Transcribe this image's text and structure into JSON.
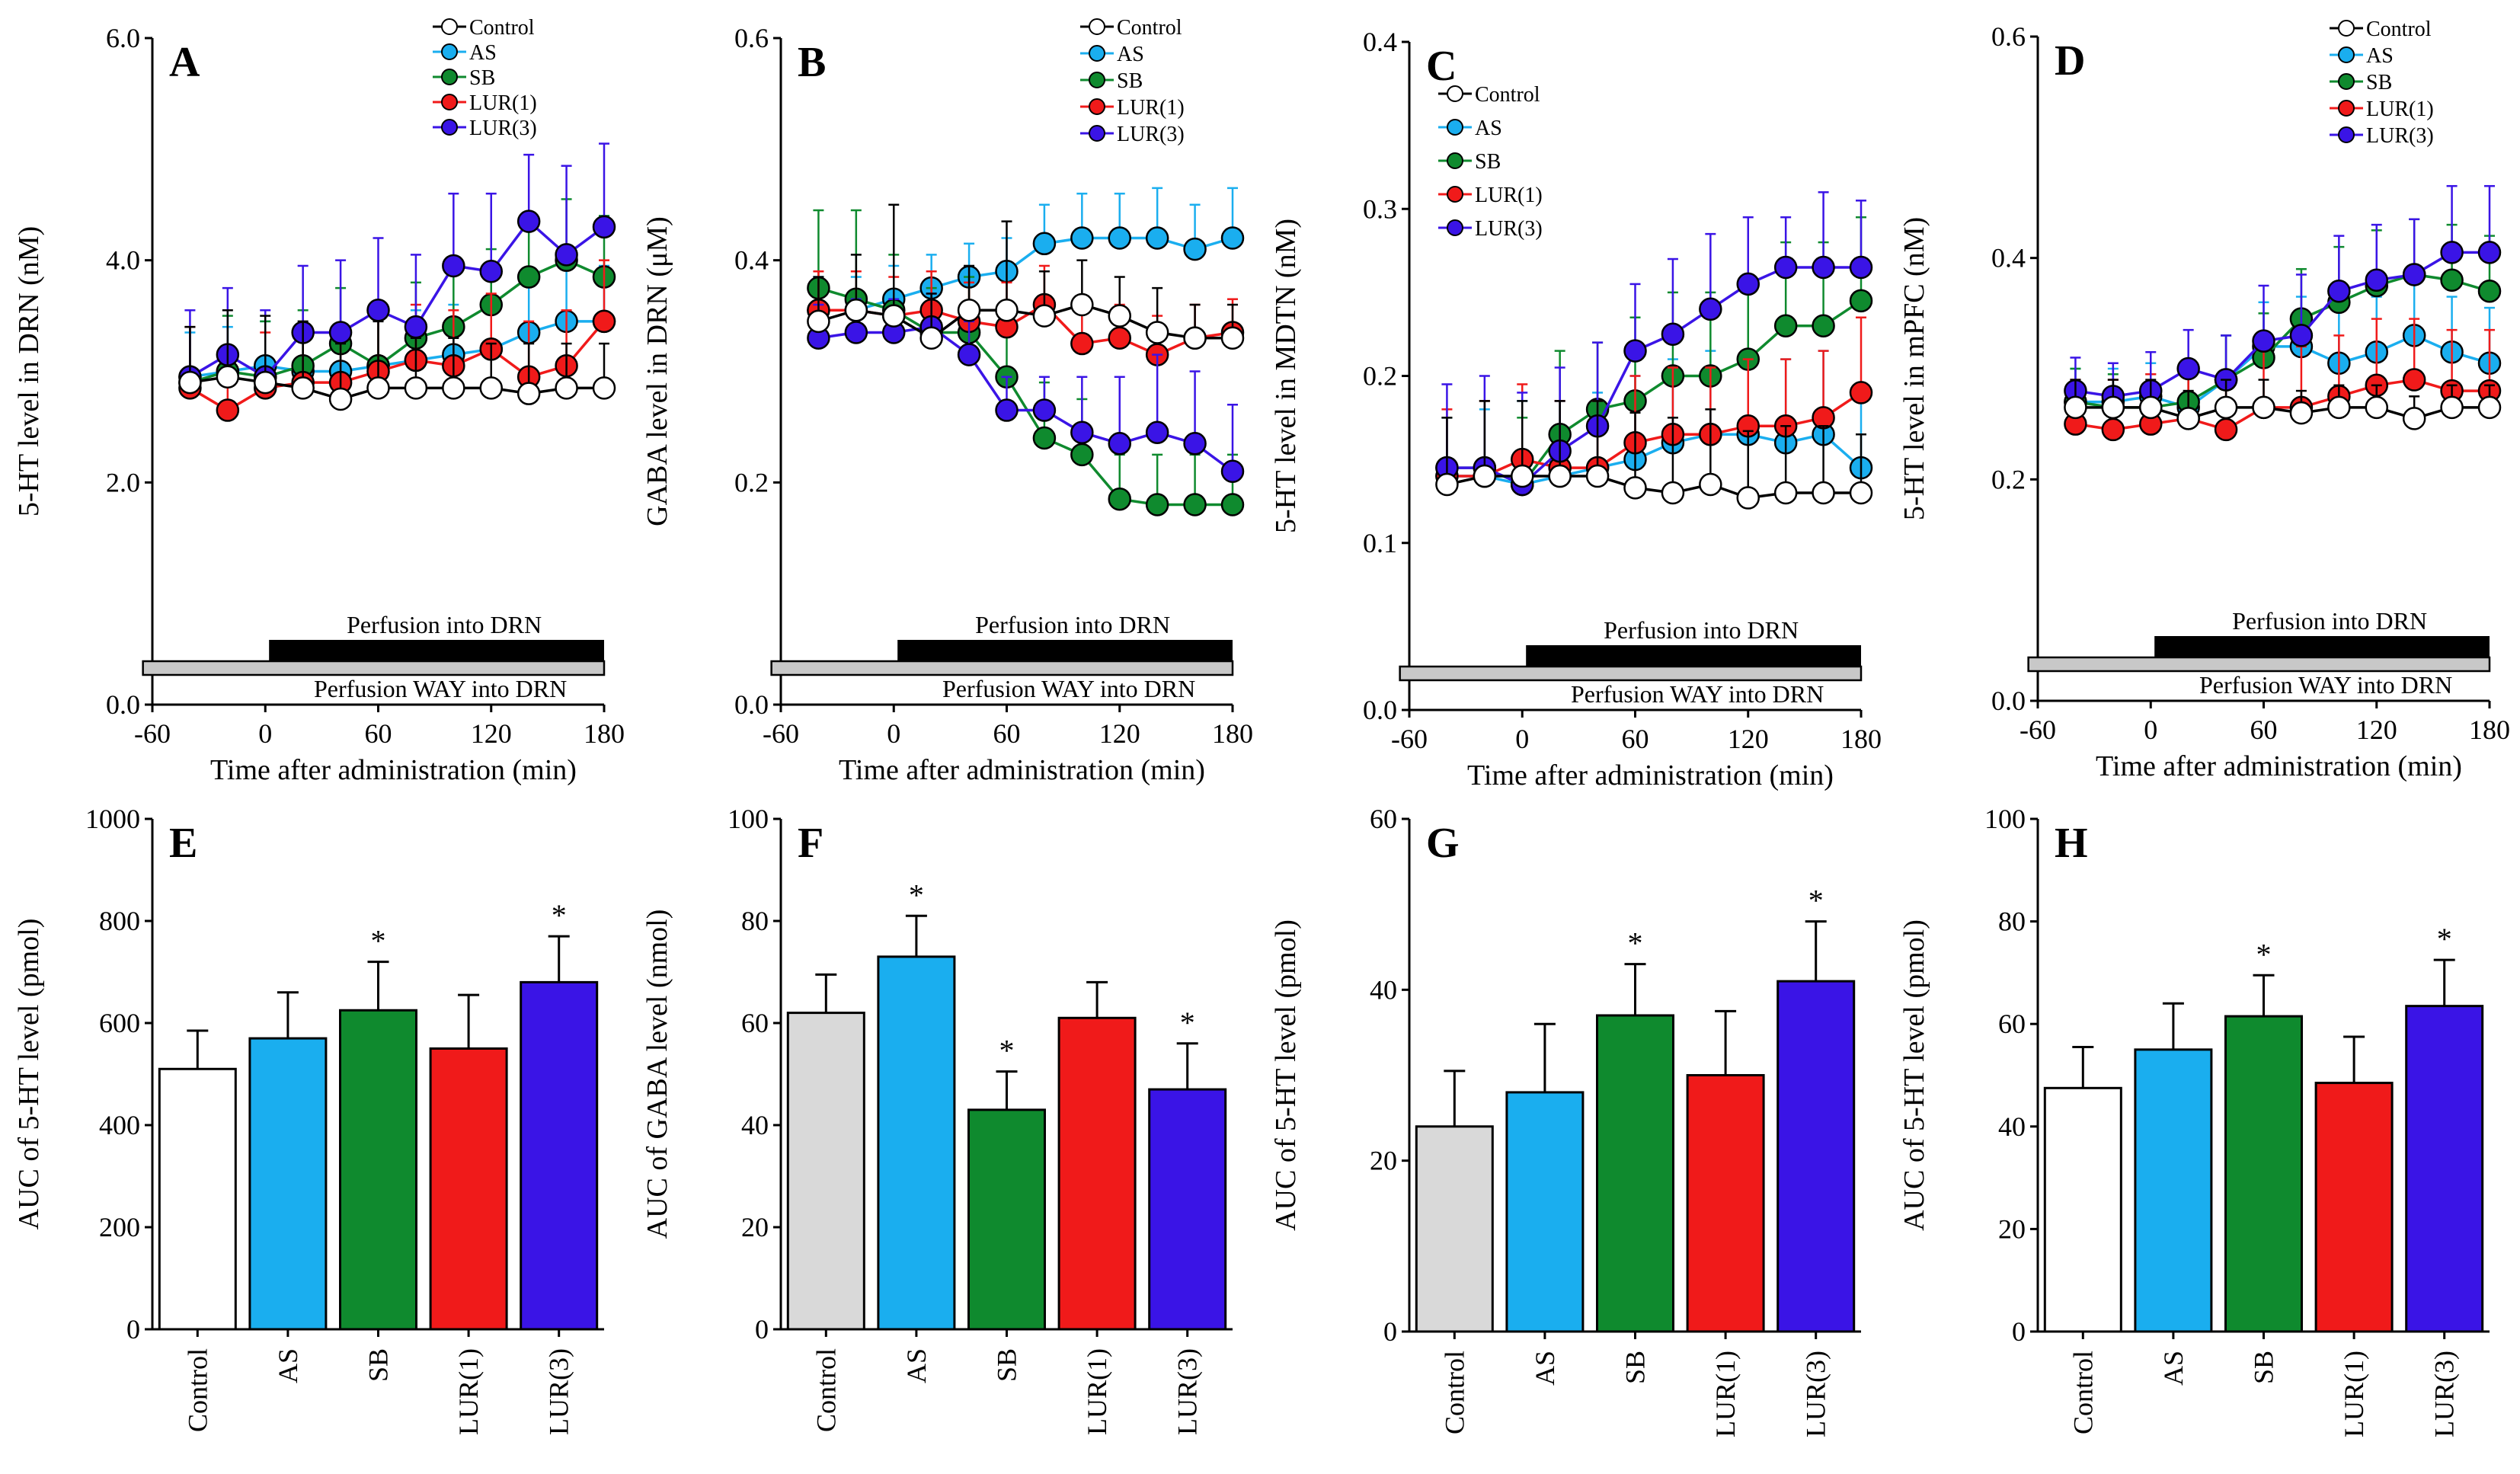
{
  "colors": {
    "Control": "#ffffff",
    "AS": "#1aaeef",
    "SB": "#0f8a2e",
    "LUR(1)": "#f01a1a",
    "LUR(3)": "#3a14e6",
    "Control_bar": "#d9d9d9"
  },
  "chart_data": [
    {
      "panel": "A",
      "type": "line",
      "ylabel": "5-HT level in DRN (nM)",
      "xlabel": "Time after administration (min)",
      "xlim": [
        -60,
        180
      ],
      "xticks": [
        "-60",
        "0",
        "60",
        "120",
        "180"
      ],
      "ylim": [
        0,
        6
      ],
      "yticks": [
        "0.0",
        "2.0",
        "4.0",
        "6.0"
      ],
      "annotations": {
        "perfusion": "Perfusion into DRN",
        "way": "Perfusion WAY into DRN"
      },
      "x": [
        -40,
        -20,
        0,
        20,
        40,
        60,
        80,
        100,
        120,
        140,
        160,
        180
      ],
      "series": [
        {
          "name": "Control",
          "values": [
            2.9,
            2.95,
            2.9,
            2.85,
            2.75,
            2.85,
            2.85,
            2.85,
            2.85,
            2.8,
            2.85,
            2.85
          ],
          "err": [
            0.5,
            0.6,
            0.6,
            0.6,
            0.5,
            0.6,
            0.45,
            0.45,
            0.4,
            0.45,
            0.4,
            0.4
          ]
        },
        {
          "name": "AS",
          "values": [
            2.95,
            3.0,
            3.05,
            3.0,
            3.0,
            3.05,
            3.1,
            3.15,
            3.2,
            3.35,
            3.45,
            3.45
          ],
          "err": [
            0.4,
            0.4,
            0.4,
            0.4,
            0.4,
            0.45,
            0.45,
            0.45,
            0.45,
            0.5,
            0.5,
            0.5
          ]
        },
        {
          "name": "SB",
          "values": [
            2.9,
            3.0,
            2.95,
            3.05,
            3.25,
            3.05,
            3.3,
            3.4,
            3.6,
            3.85,
            4.0,
            3.85
          ],
          "err": [
            0.5,
            0.5,
            0.5,
            0.5,
            0.5,
            0.5,
            0.5,
            0.5,
            0.5,
            0.55,
            0.55,
            0.55
          ]
        },
        {
          "name": "LUR(1)",
          "values": [
            2.85,
            2.65,
            2.85,
            2.9,
            2.9,
            3.0,
            3.1,
            3.05,
            3.2,
            2.95,
            3.05,
            3.45
          ],
          "err": [
            0.55,
            0.5,
            0.5,
            0.5,
            0.5,
            0.5,
            0.5,
            0.5,
            0.5,
            0.5,
            0.5,
            0.55
          ]
        },
        {
          "name": "LUR(3)",
          "values": [
            2.95,
            3.15,
            2.95,
            3.35,
            3.35,
            3.55,
            3.4,
            3.95,
            3.9,
            4.35,
            4.05,
            4.3
          ],
          "err": [
            0.6,
            0.6,
            0.6,
            0.6,
            0.65,
            0.65,
            0.65,
            0.65,
            0.7,
            0.6,
            0.8,
            0.75
          ]
        }
      ]
    },
    {
      "panel": "B",
      "type": "line",
      "ylabel": "GABA level in DRN (μM)",
      "xlabel": "Time after administration (min)",
      "xlim": [
        -60,
        180
      ],
      "xticks": [
        "-60",
        "0",
        "60",
        "120",
        "180"
      ],
      "ylim": [
        0,
        0.6
      ],
      "yticks": [
        "0.0",
        "0.2",
        "0.4",
        "0.6"
      ],
      "annotations": {
        "perfusion": "Perfusion into DRN",
        "way": "Perfusion WAY into DRN"
      },
      "x": [
        -40,
        -20,
        0,
        20,
        40,
        60,
        80,
        100,
        120,
        140,
        160,
        180
      ],
      "series": [
        {
          "name": "Control",
          "values": [
            0.345,
            0.355,
            0.35,
            0.33,
            0.355,
            0.355,
            0.35,
            0.36,
            0.35,
            0.335,
            0.33,
            0.33
          ],
          "err": [
            0.04,
            0.05,
            0.1,
            0.04,
            0.04,
            0.08,
            0.04,
            0.04,
            0.035,
            0.04,
            0.03,
            0.03
          ]
        },
        {
          "name": "AS",
          "values": [
            0.355,
            0.355,
            0.365,
            0.375,
            0.385,
            0.39,
            0.415,
            0.42,
            0.42,
            0.42,
            0.41,
            0.42
          ],
          "err": [
            0.03,
            0.03,
            0.03,
            0.03,
            0.03,
            0.03,
            0.035,
            0.04,
            0.04,
            0.045,
            0.04,
            0.045
          ]
        },
        {
          "name": "SB",
          "values": [
            0.375,
            0.365,
            0.355,
            0.335,
            0.335,
            0.295,
            0.24,
            0.225,
            0.185,
            0.18,
            0.18,
            0.18
          ],
          "err": [
            0.07,
            0.08,
            0.05,
            0.04,
            0.05,
            0.05,
            0.05,
            0.05,
            0.04,
            0.045,
            0.045,
            0.045
          ]
        },
        {
          "name": "LUR(1)",
          "values": [
            0.355,
            0.355,
            0.35,
            0.355,
            0.345,
            0.34,
            0.36,
            0.325,
            0.33,
            0.315,
            0.33,
            0.335
          ],
          "err": [
            0.035,
            0.035,
            0.035,
            0.035,
            0.035,
            0.04,
            0.035,
            0.035,
            0.03,
            0.035,
            0.03,
            0.03
          ]
        },
        {
          "name": "LUR(3)",
          "values": [
            0.33,
            0.335,
            0.335,
            0.34,
            0.315,
            0.265,
            0.265,
            0.245,
            0.235,
            0.245,
            0.235,
            0.21
          ],
          "err": [
            0.03,
            0.03,
            0.03,
            0.03,
            0.03,
            0.03,
            0.03,
            0.05,
            0.06,
            0.07,
            0.065,
            0.06
          ]
        }
      ]
    },
    {
      "panel": "C",
      "type": "line",
      "ylabel": "5-HT level in MDTN (nM)",
      "xlabel": "Time after administration (min)",
      "xlim": [
        -60,
        180
      ],
      "xticks": [
        "-60",
        "0",
        "60",
        "120",
        "180"
      ],
      "ylim": [
        0,
        0.4
      ],
      "yticks": [
        "0.0",
        "0.1",
        "0.2",
        "0.3",
        "0.4"
      ],
      "annotations": {
        "perfusion": "Perfusion into DRN",
        "way": "Perfusion WAY into DRN"
      },
      "x": [
        -40,
        -20,
        0,
        20,
        40,
        60,
        80,
        100,
        120,
        140,
        160,
        180
      ],
      "series": [
        {
          "name": "Control",
          "values": [
            0.135,
            0.14,
            0.14,
            0.14,
            0.14,
            0.133,
            0.13,
            0.135,
            0.127,
            0.13,
            0.13,
            0.13
          ],
          "err": [
            0.04,
            0.045,
            0.045,
            0.045,
            0.045,
            0.045,
            0.045,
            0.045,
            0.04,
            0.04,
            0.04,
            0.035
          ]
        },
        {
          "name": "AS",
          "values": [
            0.14,
            0.14,
            0.135,
            0.14,
            0.145,
            0.15,
            0.16,
            0.165,
            0.165,
            0.16,
            0.165,
            0.145
          ],
          "err": [
            0.035,
            0.04,
            0.05,
            0.045,
            0.045,
            0.05,
            0.05,
            0.05,
            0.05,
            0.05,
            0.05,
            0.045
          ]
        },
        {
          "name": "SB",
          "values": [
            0.145,
            0.145,
            0.135,
            0.165,
            0.18,
            0.185,
            0.2,
            0.2,
            0.21,
            0.23,
            0.23,
            0.245
          ],
          "err": [
            0.03,
            0.04,
            0.04,
            0.05,
            0.04,
            0.05,
            0.05,
            0.05,
            0.05,
            0.05,
            0.05,
            0.05
          ]
        },
        {
          "name": "LUR(1)",
          "values": [
            0.14,
            0.14,
            0.15,
            0.145,
            0.145,
            0.16,
            0.165,
            0.165,
            0.17,
            0.17,
            0.175,
            0.19
          ],
          "err": [
            0.04,
            0.045,
            0.045,
            0.04,
            0.04,
            0.04,
            0.04,
            0.04,
            0.04,
            0.04,
            0.04,
            0.045
          ]
        },
        {
          "name": "LUR(3)",
          "values": [
            0.145,
            0.145,
            0.135,
            0.155,
            0.17,
            0.215,
            0.225,
            0.24,
            0.255,
            0.265,
            0.265,
            0.265
          ],
          "err": [
            0.05,
            0.055,
            0.055,
            0.05,
            0.05,
            0.04,
            0.045,
            0.045,
            0.04,
            0.03,
            0.045,
            0.04
          ]
        }
      ]
    },
    {
      "panel": "D",
      "type": "line",
      "ylabel": "5-HT level in mPFC (nM)",
      "xlabel": "Time after administration (min)",
      "xlim": [
        -60,
        180
      ],
      "xticks": [
        "-60",
        "0",
        "60",
        "120",
        "180"
      ],
      "ylim": [
        0,
        0.6
      ],
      "yticks": [
        "0.0",
        "0.2",
        "0.4",
        "0.6"
      ],
      "annotations": {
        "perfusion": "Perfusion into DRN",
        "way": "Perfusion WAY into DRN"
      },
      "x": [
        -40,
        -20,
        0,
        20,
        40,
        60,
        80,
        100,
        120,
        140,
        160,
        180
      ],
      "series": [
        {
          "name": "Control",
          "values": [
            0.265,
            0.265,
            0.265,
            0.255,
            0.265,
            0.265,
            0.26,
            0.265,
            0.265,
            0.255,
            0.265,
            0.265
          ],
          "err": [
            0.025,
            0.025,
            0.025,
            0.025,
            0.025,
            0.025,
            0.02,
            0.02,
            0.02,
            0.02,
            0.02,
            0.02
          ]
        },
        {
          "name": "AS",
          "values": [
            0.27,
            0.27,
            0.275,
            0.265,
            0.29,
            0.32,
            0.32,
            0.305,
            0.315,
            0.33,
            0.315,
            0.305
          ],
          "err": [
            0.03,
            0.03,
            0.03,
            0.03,
            0.04,
            0.04,
            0.045,
            0.05,
            0.05,
            0.05,
            0.05,
            0.05
          ]
        },
        {
          "name": "SB",
          "values": [
            0.27,
            0.265,
            0.265,
            0.27,
            0.29,
            0.31,
            0.345,
            0.36,
            0.375,
            0.385,
            0.38,
            0.37
          ],
          "err": [
            0.03,
            0.03,
            0.03,
            0.035,
            0.04,
            0.04,
            0.045,
            0.05,
            0.05,
            0.05,
            0.05,
            0.05
          ]
        },
        {
          "name": "LUR(1)",
          "values": [
            0.25,
            0.245,
            0.25,
            0.255,
            0.245,
            0.265,
            0.265,
            0.275,
            0.285,
            0.29,
            0.28,
            0.28
          ],
          "err": [
            0.04,
            0.045,
            0.045,
            0.05,
            0.05,
            0.055,
            0.055,
            0.055,
            0.06,
            0.055,
            0.055,
            0.055
          ]
        },
        {
          "name": "LUR(3)",
          "values": [
            0.28,
            0.275,
            0.28,
            0.3,
            0.29,
            0.325,
            0.33,
            0.37,
            0.38,
            0.385,
            0.405,
            0.405
          ],
          "err": [
            0.03,
            0.03,
            0.035,
            0.035,
            0.04,
            0.05,
            0.055,
            0.05,
            0.05,
            0.05,
            0.06,
            0.06
          ]
        }
      ]
    },
    {
      "panel": "E",
      "type": "bar",
      "ylabel": "AUC of 5-HT level (pmol)",
      "ylim": [
        0,
        1000
      ],
      "yticks": [
        "0",
        "200",
        "400",
        "600",
        "800",
        "1000"
      ],
      "categories": [
        "Control",
        "AS",
        "SB",
        "LUR(1)",
        "LUR(3)"
      ],
      "values": [
        510,
        570,
        625,
        550,
        680
      ],
      "err": [
        75,
        90,
        95,
        105,
        90
      ],
      "marks": [
        "",
        "",
        "*",
        "",
        "*"
      ]
    },
    {
      "panel": "F",
      "type": "bar",
      "ylabel": "AUC of GABA level (nmol)",
      "ylim": [
        0,
        100
      ],
      "yticks": [
        "0",
        "20",
        "40",
        "60",
        "80",
        "100"
      ],
      "categories": [
        "Control",
        "AS",
        "SB",
        "LUR(1)",
        "LUR(3)"
      ],
      "values": [
        62,
        73,
        43,
        61,
        47
      ],
      "err": [
        7.5,
        8,
        7.5,
        7,
        9
      ],
      "marks": [
        "",
        "*",
        "*",
        "",
        "*"
      ]
    },
    {
      "panel": "G",
      "type": "bar",
      "ylabel": "AUC of 5-HT level (pmol)",
      "ylim": [
        0,
        60
      ],
      "yticks": [
        "0",
        "20",
        "40",
        "60"
      ],
      "categories": [
        "Control",
        "AS",
        "SB",
        "LUR(1)",
        "LUR(3)"
      ],
      "values": [
        24,
        28,
        37,
        30,
        41
      ],
      "err": [
        6.5,
        8,
        6,
        7.5,
        7
      ],
      "marks": [
        "",
        "",
        "*",
        "",
        "*"
      ]
    },
    {
      "panel": "H",
      "type": "bar",
      "ylabel": "AUC of 5-HT level (pmol)",
      "ylim": [
        0,
        100
      ],
      "yticks": [
        "0",
        "20",
        "40",
        "60",
        "80",
        "100"
      ],
      "categories": [
        "Control",
        "AS",
        "SB",
        "LUR(1)",
        "LUR(3)"
      ],
      "values": [
        47.5,
        55,
        61.5,
        48.5,
        63.5
      ],
      "err": [
        8,
        9,
        8,
        9,
        9
      ],
      "marks": [
        "",
        "",
        "*",
        "",
        "*"
      ]
    }
  ]
}
